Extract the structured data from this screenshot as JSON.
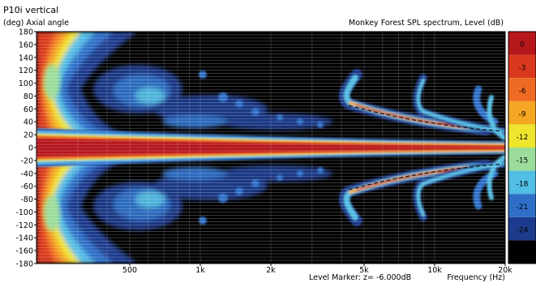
{
  "chart_data": {
    "type": "heatmap",
    "title": "P10i vertical",
    "subtitle": "Monkey Forest SPL spectrum, Level  (dB)",
    "ylabel": "(deg)  Axial angle",
    "xlabel": "Frequency  (Hz)",
    "x_scale": "log",
    "xlim": [
      200,
      20000
    ],
    "ylim": [
      -180,
      180
    ],
    "x_ticks": [
      {
        "value": 500,
        "label": "500"
      },
      {
        "value": 1000,
        "label": "1k"
      },
      {
        "value": 2000,
        "label": "2k"
      },
      {
        "value": 5000,
        "label": "5k"
      },
      {
        "value": 10000,
        "label": "10k"
      },
      {
        "value": 20000,
        "label": "20k"
      }
    ],
    "y_ticks": [
      180,
      160,
      140,
      120,
      100,
      80,
      60,
      40,
      20,
      0,
      -20,
      -40,
      -60,
      -80,
      -100,
      -120,
      -140,
      -160,
      -180
    ],
    "level_marker": "Level Marker:  z= -6.000dB",
    "colorbar": {
      "levels": [
        0,
        -3,
        -6,
        -9,
        -12,
        -15,
        -18,
        -21,
        -24
      ],
      "colors": [
        "#b5171a",
        "#d9381f",
        "#ef6a22",
        "#f5a623",
        "#eee52e",
        "#9bdc9a",
        "#52bde5",
        "#2f6fc8",
        "#1d3b8c",
        "#000000"
      ]
    },
    "description_regions": [
      {
        "freq_range": [
          200,
          20000
        ],
        "angle_range": [
          -8,
          8
        ],
        "level": "0 to -3"
      },
      {
        "freq_range": [
          200,
          450
        ],
        "angle_range": [
          -180,
          180
        ],
        "level": "-3 to -9"
      },
      {
        "freq_range": [
          4500,
          20000
        ],
        "angle_range": [
          -90,
          90
        ],
        "level": "lobes -3 to -15"
      }
    ]
  },
  "labels": {
    "title": "P10i vertical",
    "ylabel": "(deg)  Axial angle",
    "subtitle": "Monkey Forest SPL spectrum, Level  (dB)",
    "level_marker": "Level Marker:  z= -6.000dB",
    "xlabel": "Frequency  (Hz)"
  }
}
